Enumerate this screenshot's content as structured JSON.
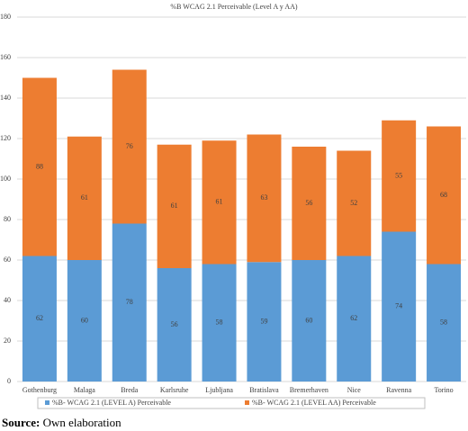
{
  "chart_data": {
    "type": "stacked-bar",
    "title": "%B WCAG 2.1 Perceivable (Level A y AA)",
    "categories": [
      "Gothenburg",
      "Malaga",
      "Breda",
      "Karlsruhe",
      "Ljubljana",
      "Bratislava",
      "Bremerhaven",
      "Nice",
      "Ravenna",
      "Torino"
    ],
    "series": [
      {
        "name": "%B- WCAG 2.1 (LEVEL A) Perceivable",
        "color": "#5b9bd5",
        "values": [
          62,
          60,
          78,
          56,
          58,
          59,
          60,
          62,
          74,
          58
        ]
      },
      {
        "name": "%B- WCAG 2.1 (LEVEL AA) Perceivable",
        "color": "#ed7d31",
        "values": [
          88,
          61,
          76,
          61,
          61,
          63,
          56,
          52,
          55,
          68
        ]
      }
    ],
    "ylim": [
      0,
      180
    ],
    "yticks": [
      0,
      20,
      40,
      60,
      80,
      100,
      120,
      140,
      160,
      180
    ],
    "grid": true,
    "legend": "bottom"
  },
  "source": {
    "label": "Source:",
    "text": "Own elaboration"
  }
}
